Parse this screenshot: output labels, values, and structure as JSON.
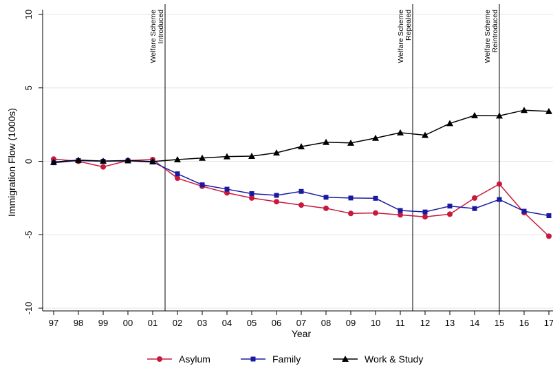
{
  "chart_data": {
    "type": "line",
    "title": "",
    "xlabel": "Year",
    "ylabel": "Immigration Flow (1000s)",
    "categories": [
      "97",
      "98",
      "99",
      "00",
      "01",
      "02",
      "03",
      "04",
      "05",
      "06",
      "07",
      "08",
      "09",
      "10",
      "11",
      "12",
      "13",
      "14",
      "15",
      "16",
      "17"
    ],
    "ylim": [
      -10,
      10
    ],
    "yticks": [
      "-10",
      "-5",
      "0",
      "5",
      "10"
    ],
    "grid": true,
    "legend_position": "bottom",
    "series": [
      {
        "name": "Asylum",
        "color": "#c8193c",
        "marker": "circle",
        "values": [
          0.15,
          0.0,
          -0.38,
          0.05,
          0.12,
          -1.15,
          -1.7,
          -2.15,
          -2.5,
          -2.75,
          -2.98,
          -3.2,
          -3.55,
          -3.52,
          -3.65,
          -3.78,
          -3.6,
          -2.5,
          -1.55,
          -3.5,
          -5.1
        ]
      },
      {
        "name": "Family",
        "color": "#1a1aa0",
        "marker": "square",
        "values": [
          -0.1,
          0.05,
          0.0,
          0.03,
          -0.05,
          -0.85,
          -1.6,
          -1.9,
          -2.2,
          -2.32,
          -2.05,
          -2.45,
          -2.5,
          -2.52,
          -3.35,
          -3.45,
          -3.05,
          -3.22,
          -2.6,
          -3.4,
          -3.7
        ]
      },
      {
        "name": "Work & Study",
        "color": "#000000",
        "marker": "triangle",
        "values": [
          -0.05,
          0.08,
          0.02,
          0.05,
          -0.02,
          0.12,
          0.22,
          0.32,
          0.35,
          0.58,
          1.0,
          1.3,
          1.25,
          1.58,
          1.95,
          1.78,
          2.58,
          3.12,
          3.1,
          3.48,
          3.4
        ]
      }
    ],
    "annotations": [
      {
        "after_category_index": 4,
        "lines": [
          "Welfare Scheme",
          "Introduced"
        ]
      },
      {
        "after_category_index": 14,
        "lines": [
          "Welfare Scheme",
          "Repealed"
        ]
      },
      {
        "at_category_index": 18,
        "lines": [
          "Welfare Scheme",
          "Reintroduced"
        ]
      }
    ]
  }
}
